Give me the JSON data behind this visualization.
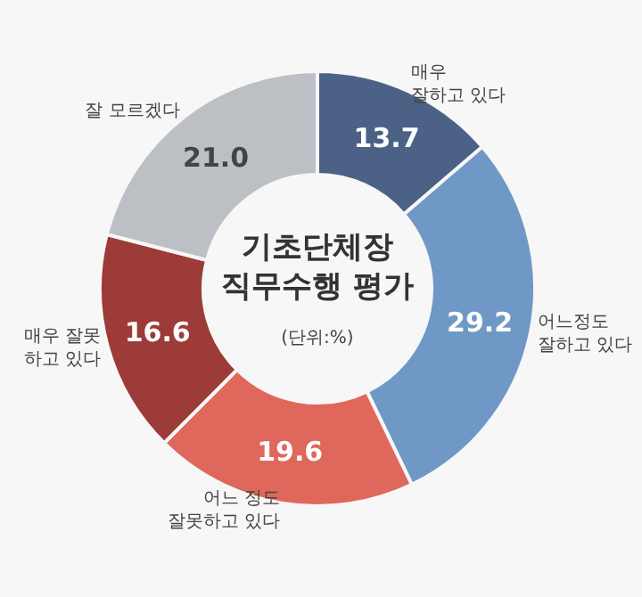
{
  "chart_data": {
    "type": "donut",
    "title": "기초단체장\n직무수행 평가",
    "subtitle": "(단위:%)",
    "categories": [
      "매우\n잘하고 있다",
      "어느정도\n잘하고 있다",
      "어느 정도\n잘못하고 있다",
      "매우 잘못\n하고 있다",
      "잘 모르겠다"
    ],
    "values": [
      13.7,
      29.2,
      19.6,
      16.6,
      21.0
    ],
    "value_labels": [
      "13.7",
      "29.2",
      "19.6",
      "16.6",
      "21.0"
    ],
    "colors": [
      "#4b6286",
      "#7098c6",
      "#e0675b",
      "#9c3b37",
      "#bcbfc4"
    ],
    "legend": false
  }
}
